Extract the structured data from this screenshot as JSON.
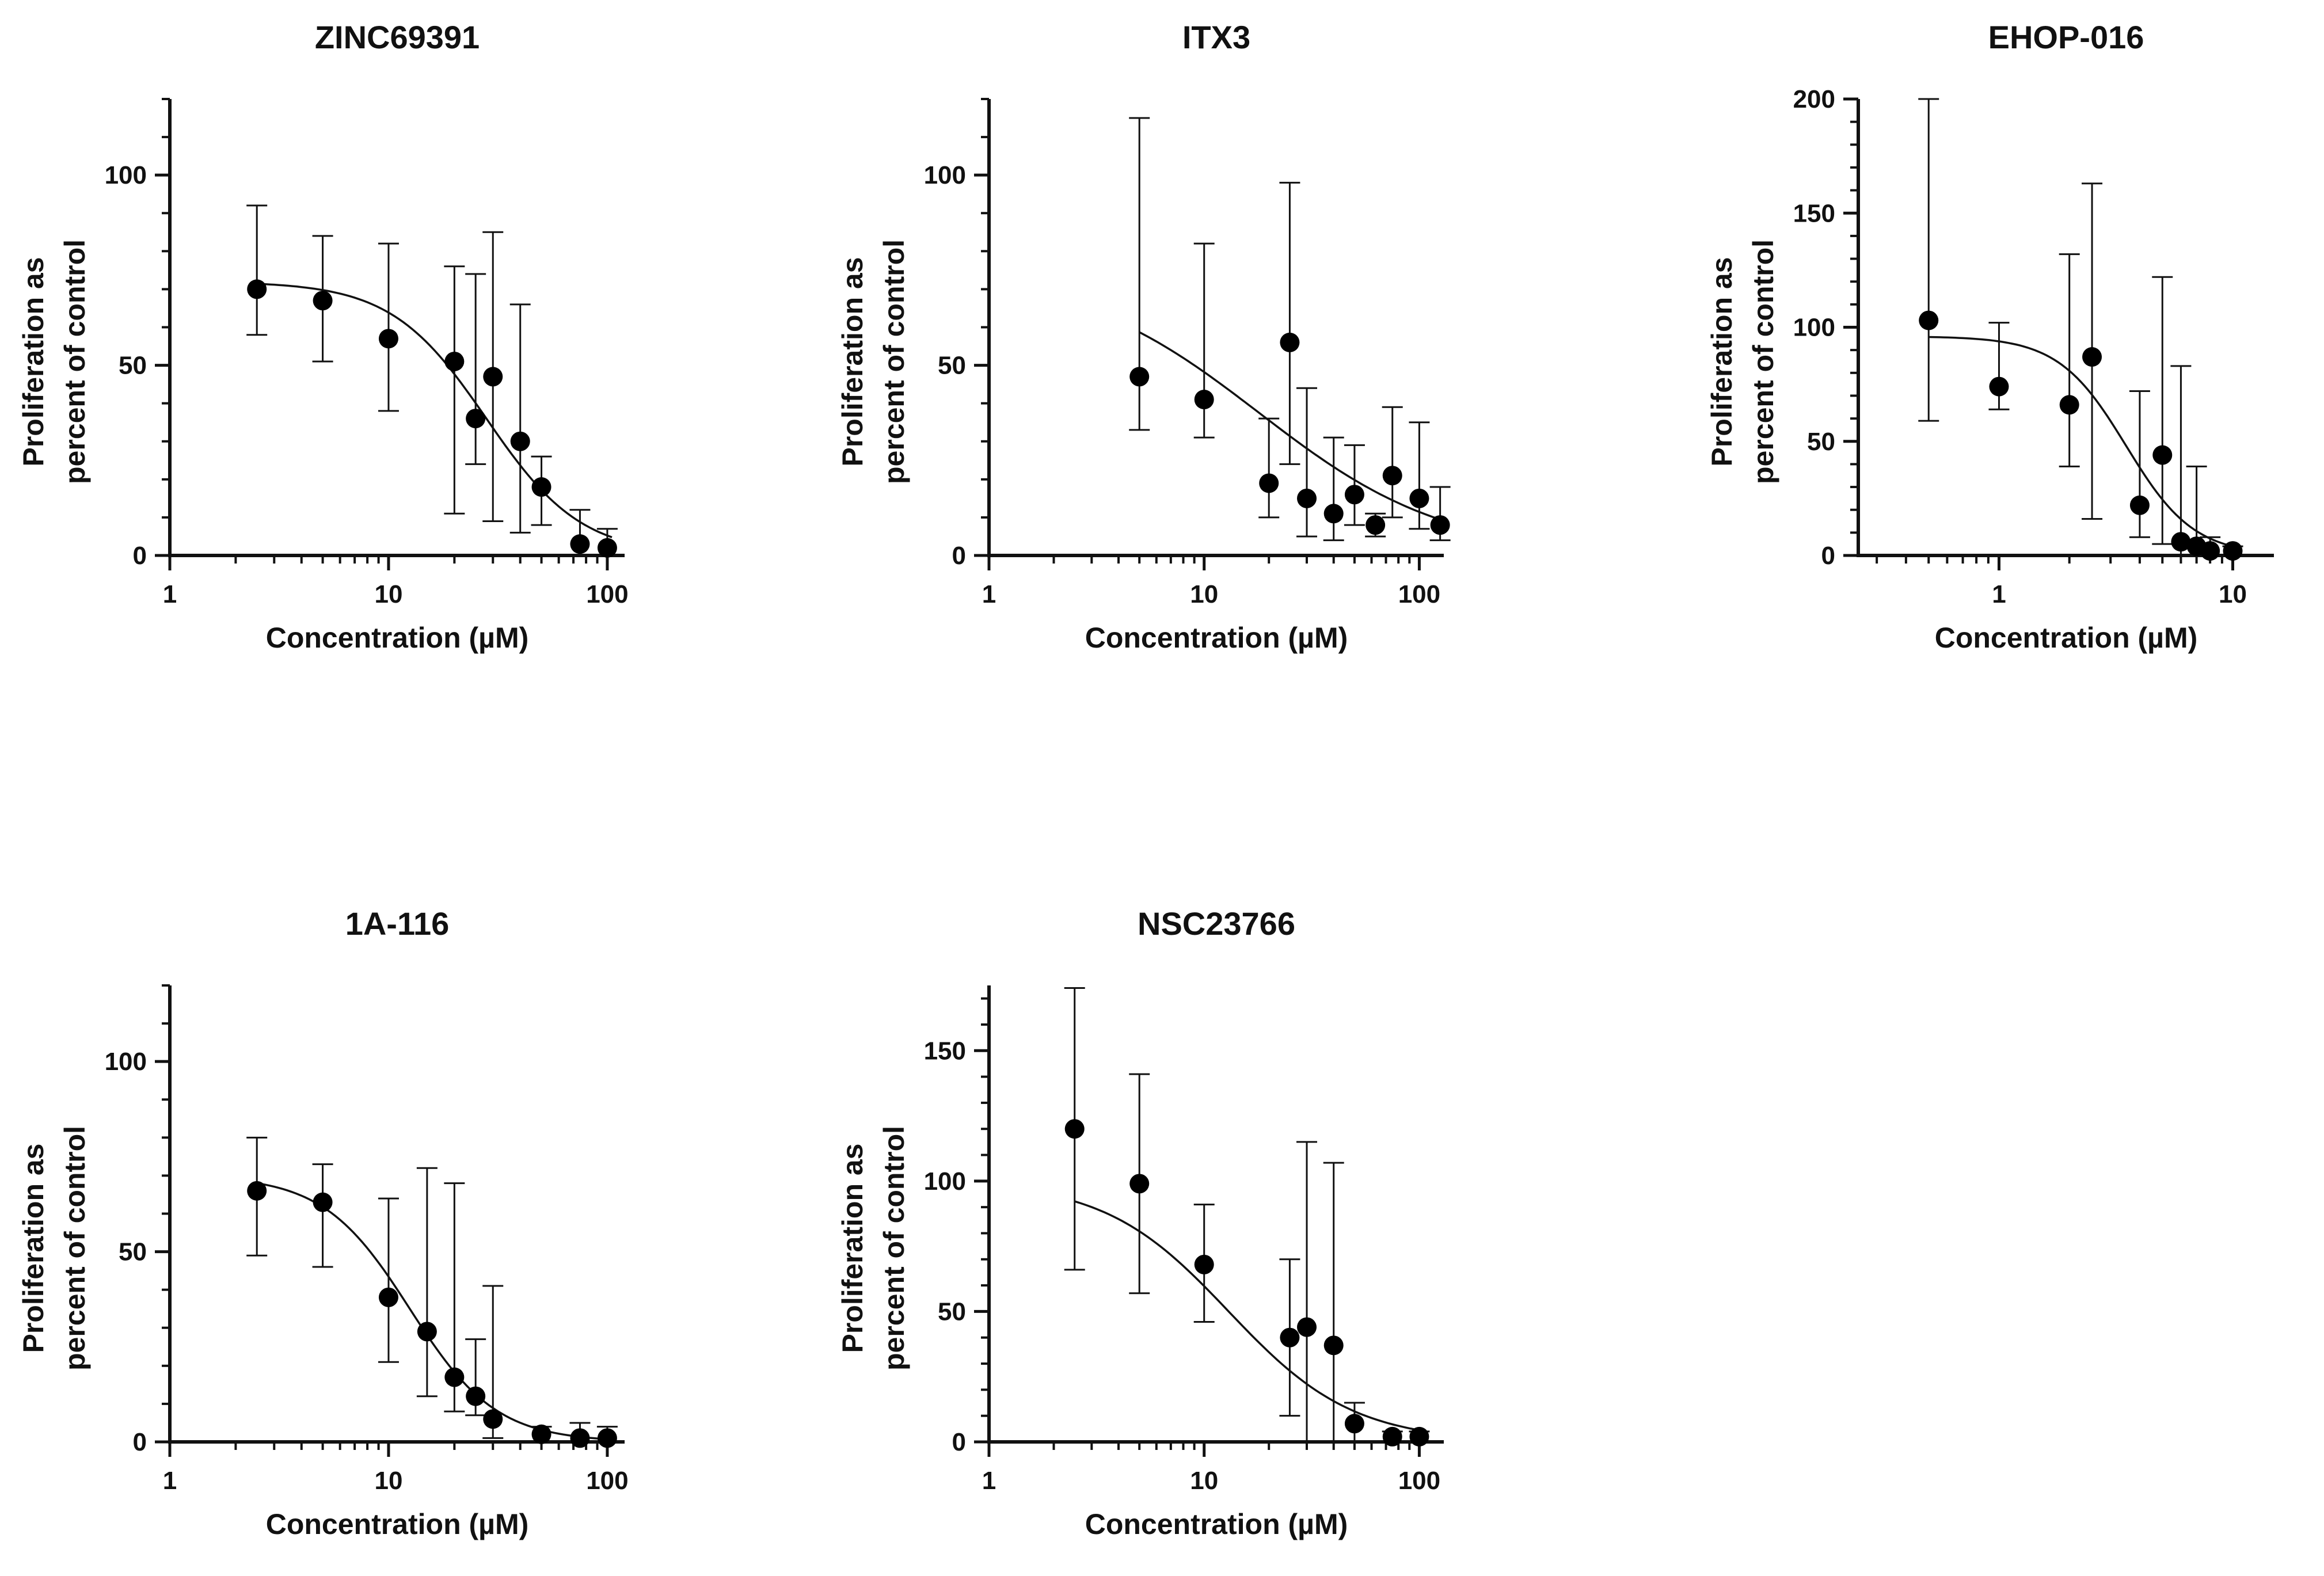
{
  "figure": {
    "xlabel": "Concentration (µM)",
    "ylabel_line1": "Proliferation as",
    "ylabel_line2": "percent of control"
  },
  "chart_data": [
    {
      "type": "scatter",
      "title": "ZINC69391",
      "xlabel": "Concentration (µM)",
      "ylabel": "Proliferation as percent of control",
      "xscale": "log",
      "xlim": [
        1,
        120
      ],
      "ylim": [
        0,
        120
      ],
      "xticks": [
        1,
        10,
        100
      ],
      "yticks": [
        0,
        50,
        100
      ],
      "points": [
        {
          "x": 2.5,
          "y": 70,
          "err_low": 58,
          "err_high": 92
        },
        {
          "x": 5,
          "y": 67,
          "err_low": 51,
          "err_high": 84
        },
        {
          "x": 10,
          "y": 57,
          "err_low": 38,
          "err_high": 82
        },
        {
          "x": 20,
          "y": 51,
          "err_low": 11,
          "err_high": 76
        },
        {
          "x": 25,
          "y": 36,
          "err_low": 24,
          "err_high": 74
        },
        {
          "x": 30,
          "y": 47,
          "err_low": 9,
          "err_high": 85
        },
        {
          "x": 40,
          "y": 30,
          "err_low": 6,
          "err_high": 66
        },
        {
          "x": 50,
          "y": 18,
          "err_low": 8,
          "err_high": 26
        },
        {
          "x": 75,
          "y": 3,
          "err_low": 0,
          "err_high": 12
        },
        {
          "x": 100,
          "y": 2,
          "err_low": 0,
          "err_high": 7
        }
      ],
      "fit": {
        "top": 72,
        "bottom": 0,
        "ic50": 28,
        "hill": 2.0,
        "xrange": [
          2.5,
          105
        ]
      }
    },
    {
      "type": "scatter",
      "title": "ITX3",
      "xlabel": "Concentration (µM)",
      "ylabel": "Proliferation as percent of control",
      "xscale": "log",
      "xlim": [
        1,
        130
      ],
      "ylim": [
        0,
        120
      ],
      "xticks": [
        1,
        10,
        100
      ],
      "yticks": [
        0,
        50,
        100
      ],
      "points": [
        {
          "x": 5,
          "y": 47,
          "err_low": 33,
          "err_high": 115
        },
        {
          "x": 10,
          "y": 41,
          "err_low": 31,
          "err_high": 82
        },
        {
          "x": 20,
          "y": 19,
          "err_low": 10,
          "err_high": 36
        },
        {
          "x": 25,
          "y": 56,
          "err_low": 24,
          "err_high": 98
        },
        {
          "x": 30,
          "y": 15,
          "err_low": 5,
          "err_high": 44
        },
        {
          "x": 40,
          "y": 11,
          "err_low": 4,
          "err_high": 31
        },
        {
          "x": 50,
          "y": 16,
          "err_low": 8,
          "err_high": 29
        },
        {
          "x": 62.5,
          "y": 8,
          "err_low": 5,
          "err_high": 11
        },
        {
          "x": 75,
          "y": 21,
          "err_low": 10,
          "err_high": 39
        },
        {
          "x": 100,
          "y": 15,
          "err_low": 7,
          "err_high": 35
        },
        {
          "x": 125,
          "y": 8,
          "err_low": 4,
          "err_high": 18
        }
      ],
      "fit": {
        "top": 75,
        "bottom": 0,
        "ic50": 18,
        "hill": 1.0,
        "xrange": [
          5,
          125
        ]
      }
    },
    {
      "type": "scatter",
      "title": "EHOP-016",
      "xlabel": "Concentration (µM)",
      "ylabel": "Proliferation as percent of control",
      "xscale": "log",
      "xlim": [
        0.25,
        15
      ],
      "ylim": [
        0,
        200
      ],
      "xticks": [
        1,
        10
      ],
      "yticks": [
        0,
        50,
        100,
        150,
        200
      ],
      "points": [
        {
          "x": 0.5,
          "y": 103,
          "err_low": 59,
          "err_high": 200
        },
        {
          "x": 1,
          "y": 74,
          "err_low": 64,
          "err_high": 102
        },
        {
          "x": 2,
          "y": 66,
          "err_low": 39,
          "err_high": 132
        },
        {
          "x": 2.5,
          "y": 87,
          "err_low": 16,
          "err_high": 163
        },
        {
          "x": 4,
          "y": 22,
          "err_low": 8,
          "err_high": 72
        },
        {
          "x": 5,
          "y": 44,
          "err_low": 5,
          "err_high": 122
        },
        {
          "x": 6,
          "y": 6,
          "err_low": 0,
          "err_high": 83
        },
        {
          "x": 7,
          "y": 4,
          "err_low": 0,
          "err_high": 39
        },
        {
          "x": 8,
          "y": 2,
          "err_low": 0,
          "err_high": 8
        },
        {
          "x": 10,
          "y": 2,
          "err_low": 0,
          "err_high": 4
        }
      ],
      "fit": {
        "top": 96,
        "bottom": 0,
        "ic50": 3.5,
        "hill": 3.0,
        "xrange": [
          0.5,
          10
        ]
      }
    },
    {
      "type": "scatter",
      "title": "1A-116",
      "xlabel": "Concentration (µM)",
      "ylabel": "Proliferation as percent of control",
      "xscale": "log",
      "xlim": [
        1,
        120
      ],
      "ylim": [
        0,
        120
      ],
      "xticks": [
        1,
        10,
        100
      ],
      "yticks": [
        0,
        50,
        100
      ],
      "points": [
        {
          "x": 2.5,
          "y": 66,
          "err_low": 49,
          "err_high": 80
        },
        {
          "x": 5,
          "y": 63,
          "err_low": 46,
          "err_high": 73
        },
        {
          "x": 10,
          "y": 38,
          "err_low": 21,
          "err_high": 64
        },
        {
          "x": 15,
          "y": 29,
          "err_low": 12,
          "err_high": 72
        },
        {
          "x": 20,
          "y": 17,
          "err_low": 8,
          "err_high": 68
        },
        {
          "x": 25,
          "y": 12,
          "err_low": 7,
          "err_high": 27
        },
        {
          "x": 30,
          "y": 6,
          "err_low": 1,
          "err_high": 41
        },
        {
          "x": 50,
          "y": 2,
          "err_low": 0,
          "err_high": 4
        },
        {
          "x": 75,
          "y": 1,
          "err_low": 0,
          "err_high": 5
        },
        {
          "x": 100,
          "y": 1,
          "err_low": 0,
          "err_high": 4
        }
      ],
      "fit": {
        "top": 70,
        "bottom": 0,
        "ic50": 12.5,
        "hill": 2.2,
        "xrange": [
          2.5,
          100
        ]
      }
    },
    {
      "type": "scatter",
      "title": "NSC23766",
      "xlabel": "Concentration (µM)",
      "ylabel": "Proliferation as percent of control",
      "xscale": "log",
      "xlim": [
        1,
        130
      ],
      "ylim": [
        0,
        175
      ],
      "xticks": [
        1,
        10,
        100
      ],
      "yticks": [
        0,
        50,
        100,
        150
      ],
      "points": [
        {
          "x": 2.5,
          "y": 120,
          "err_low": 66,
          "err_high": 174
        },
        {
          "x": 5,
          "y": 99,
          "err_low": 57,
          "err_high": 141
        },
        {
          "x": 10,
          "y": 68,
          "err_low": 46,
          "err_high": 91
        },
        {
          "x": 25,
          "y": 40,
          "err_low": 10,
          "err_high": 70
        },
        {
          "x": 30,
          "y": 44,
          "err_low": 0,
          "err_high": 115
        },
        {
          "x": 40,
          "y": 37,
          "err_low": 0,
          "err_high": 107
        },
        {
          "x": 50,
          "y": 7,
          "err_low": 0,
          "err_high": 15
        },
        {
          "x": 75,
          "y": 2,
          "err_low": 0,
          "err_high": 4
        },
        {
          "x": 100,
          "y": 2,
          "err_low": 0,
          "err_high": 4
        }
      ],
      "fit": {
        "top": 100,
        "bottom": 0,
        "ic50": 13,
        "hill": 1.5,
        "xrange": [
          2.5,
          100
        ]
      }
    }
  ]
}
